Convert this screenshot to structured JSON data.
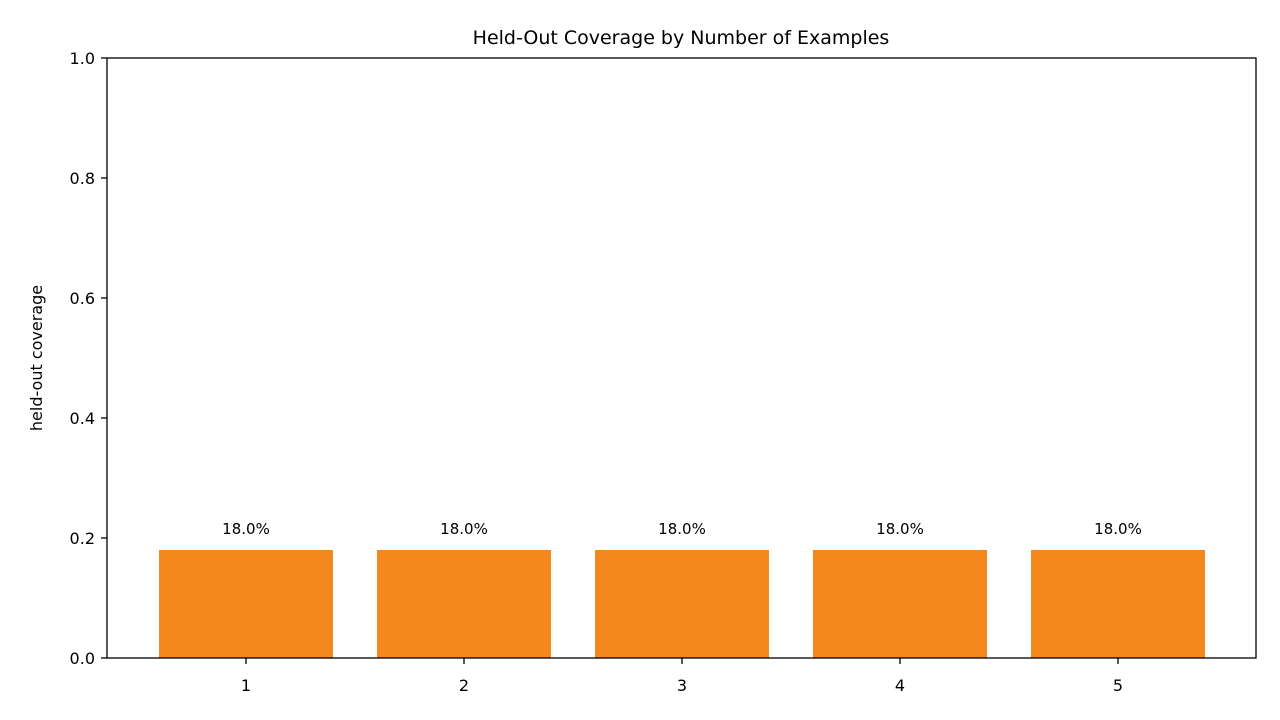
{
  "chart_data": {
    "type": "bar",
    "title": "Held-Out Coverage by Number of Examples",
    "xlabel": "",
    "ylabel": "held-out coverage",
    "categories": [
      "1",
      "2",
      "3",
      "4",
      "5"
    ],
    "values": [
      0.18,
      0.18,
      0.18,
      0.18,
      0.18
    ],
    "data_labels": [
      "18.0%",
      "18.0%",
      "18.0%",
      "18.0%",
      "18.0%"
    ],
    "ylim": [
      0,
      1
    ],
    "yticks": [
      0.0,
      0.2,
      0.4,
      0.6,
      0.8,
      1.0
    ],
    "ytick_labels": [
      "0.0",
      "0.2",
      "0.4",
      "0.6",
      "0.8",
      "1.0"
    ],
    "grid": false,
    "legend": "none",
    "bar_color": "#f5871f"
  }
}
